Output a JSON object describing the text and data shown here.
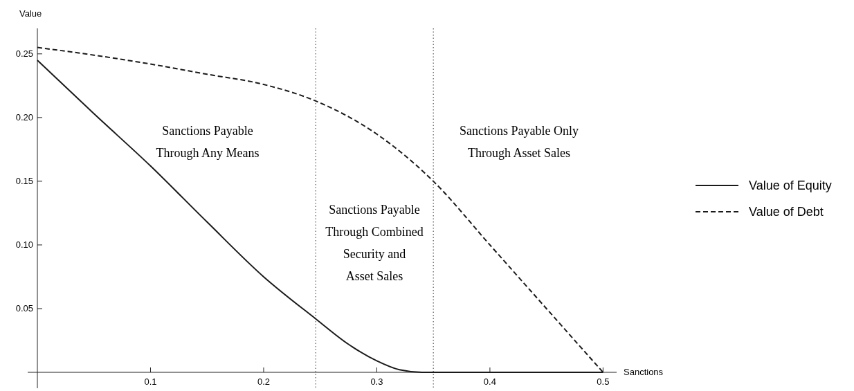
{
  "chart_data": {
    "type": "line",
    "xlabel": "Sanctions",
    "ylabel": "Value",
    "xlim": [
      0,
      0.512
    ],
    "ylim": [
      0,
      0.27
    ],
    "xticks": [
      0.1,
      0.2,
      0.3,
      0.4,
      0.5
    ],
    "yticks": [
      {
        "value": 0.05,
        "label": "0.05"
      },
      {
        "value": 0.1,
        "label": "0.10"
      },
      {
        "value": 0.15,
        "label": "0.15"
      },
      {
        "value": 0.2,
        "label": "0.20"
      },
      {
        "value": 0.25,
        "label": "0.25"
      }
    ],
    "series": [
      {
        "name": "Value of Equity",
        "color": "#1a1a1a",
        "line_style": "solid",
        "x": [
          0,
          0.05,
          0.1,
          0.15,
          0.2,
          0.246,
          0.275,
          0.3,
          0.32,
          0.34,
          0.5
        ],
        "values": [
          0.245,
          0.203,
          0.162,
          0.118,
          0.075,
          0.042,
          0.022,
          0.009,
          0.002,
          0,
          0
        ]
      },
      {
        "name": "Value of Debt",
        "color": "#1a1a1a",
        "line_style": "dashed",
        "x": [
          0,
          0.05,
          0.1,
          0.15,
          0.2,
          0.246,
          0.3,
          0.35,
          0.4,
          0.45,
          0.5
        ],
        "values": [
          0.255,
          0.249,
          0.242,
          0.234,
          0.226,
          0.213,
          0.187,
          0.15,
          0.1,
          0.05,
          0
        ]
      }
    ],
    "ref_lines": [
      {
        "axis": "x",
        "value": 0.246,
        "line_style": "dotted",
        "color": "#333333"
      },
      {
        "axis": "x",
        "value": 0.35,
        "line_style": "dotted",
        "color": "#333333"
      }
    ],
    "annotations": [
      "Sanctions Payable\nThrough Any Means",
      "Sanctions Payable\nThrough Combined\nSecurity and\nAsset Sales",
      "Sanctions Payable Only\nThrough Asset Sales"
    ],
    "legend": "right",
    "grid": false
  }
}
